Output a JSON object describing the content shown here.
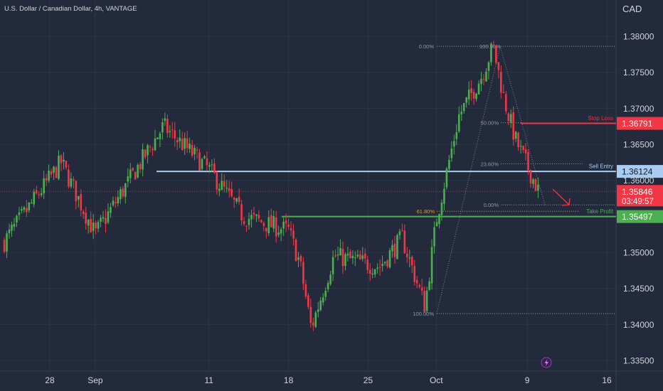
{
  "header": {
    "title": "U.S. Dollar / Canadian Dollar, 4h, VANTAGE",
    "currency": "CAD"
  },
  "chart_data": {
    "type": "candlestick",
    "title": "U.S. Dollar / Canadian Dollar, 4h, VANTAGE",
    "y_axis": {
      "ticks": [
        "1.38000",
        "1.37500",
        "1.37000",
        "1.36500",
        "1.36000",
        "1.35500",
        "1.35000",
        "1.34500",
        "1.34000",
        "1.33500"
      ],
      "range": [
        1.333,
        1.3835
      ]
    },
    "x_axis": {
      "ticks": [
        "28",
        "Sep",
        "11",
        "18",
        "25",
        "Oct",
        "9",
        "16"
      ],
      "start_date": "2023-08-24",
      "end_date": "2023-10-17"
    },
    "price_levels": [
      {
        "name": "Stop Loss",
        "label": "Stop Loss",
        "price": 1.36791,
        "badge": "1.36791",
        "color": "#f23645"
      },
      {
        "name": "Sell Entry",
        "label": "Sell Entry",
        "price": 1.36124,
        "badge": "1.36124",
        "color": "#a9cdf2"
      },
      {
        "name": "Take Profit",
        "label": "Take Profit",
        "price": 1.35497,
        "badge": "1.35497",
        "color": "#4caf50"
      }
    ],
    "last_price": {
      "price": 1.35846,
      "badge": "1.35846",
      "countdown": "03:49:57",
      "color": "#f23645"
    },
    "fibonacci_labels": [
      "0.00%",
      "100.00%",
      "50.00%",
      "23.60%",
      "0.00%",
      "61.80%",
      "100.00%"
    ],
    "key_points": [
      {
        "date": "2023-08-24",
        "price": 1.3515
      },
      {
        "date": "2023-08-29",
        "price": 1.3625
      },
      {
        "date": "2023-09-01",
        "price": 1.3525
      },
      {
        "date": "2023-09-07",
        "price": 1.3675
      },
      {
        "date": "2023-09-11",
        "price": 1.3615
      },
      {
        "date": "2023-09-14",
        "price": 1.355
      },
      {
        "date": "2023-09-18",
        "price": 1.353
      },
      {
        "date": "2023-09-19",
        "price": 1.3485
      },
      {
        "date": "2023-09-20",
        "price": 1.3395
      },
      {
        "date": "2023-09-22",
        "price": 1.3495
      },
      {
        "date": "2023-09-26",
        "price": 1.348
      },
      {
        "date": "2023-09-28",
        "price": 1.352
      },
      {
        "date": "2023-09-30",
        "price": 1.3425
      },
      {
        "date": "2023-10-01",
        "price": 1.3545
      },
      {
        "date": "2023-10-03",
        "price": 1.369
      },
      {
        "date": "2023-10-05",
        "price": 1.3745
      },
      {
        "date": "2023-10-06",
        "price": 1.3786
      },
      {
        "date": "2023-10-07",
        "price": 1.371
      },
      {
        "date": "2023-10-08",
        "price": 1.3655
      },
      {
        "date": "2023-10-10",
        "price": 1.3585
      }
    ],
    "arrow": {
      "direction": "down",
      "color": "#f23645"
    }
  },
  "colors": {
    "background": "#232a3b",
    "grid": "#2c3446",
    "up": "#4caf50",
    "down": "#f23645",
    "text": "#b2b5be"
  }
}
